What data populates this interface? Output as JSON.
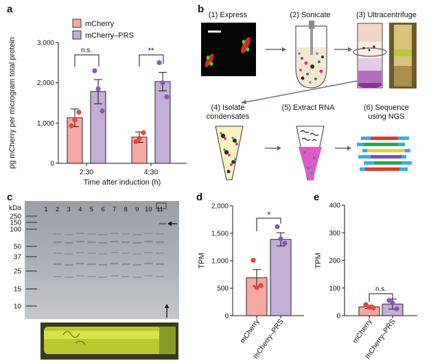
{
  "panels": {
    "a": "a",
    "b": "b",
    "c": "c",
    "d": "d",
    "e": "e"
  },
  "colors": {
    "mcherry_fill": "#f6a9a3",
    "mcherry_dot": "#e8463a",
    "prs_fill": "#c2aed6",
    "prs_dot": "#8a55b5",
    "bar_edge": "#111111"
  },
  "chart_data": [
    {
      "id": "a",
      "type": "bar",
      "ylabel": "pg mCherry per microgram total protein",
      "xlabel": "Time after induction (h)",
      "categories": [
        "2:30",
        "4:30"
      ],
      "yticks": [
        "0",
        "1,000",
        "2,000",
        "3,000"
      ],
      "ylim": [
        0,
        3000
      ],
      "legend": [
        "mCherry",
        "mCherry–PRS"
      ],
      "series": [
        {
          "name": "mCherry",
          "values": [
            1130,
            650
          ],
          "err": [
            220,
            130
          ],
          "points": [
            [
              930,
              1270,
              1080
            ],
            [
              540,
              760,
              620
            ]
          ]
        },
        {
          "name": "mCherry–PRS",
          "values": [
            1780,
            2030
          ],
          "err": [
            300,
            230
          ],
          "points": [
            [
              2300,
              1300,
              1850
            ],
            [
              2500,
              1650,
              2000
            ]
          ]
        }
      ],
      "significance": [
        "n.s.",
        "**"
      ]
    },
    {
      "id": "d",
      "type": "bar",
      "ylabel": "TPM",
      "categories": [
        "mCherry",
        "mCherry–PRS"
      ],
      "yticks": [
        "0",
        "500",
        "1,000",
        "1,500",
        "2,000"
      ],
      "ylim": [
        0,
        2000
      ],
      "values": [
        690,
        1390
      ],
      "err": [
        150,
        120
      ],
      "points": [
        [
          1010,
          550,
          510
        ],
        [
          1620,
          1320,
          1400
        ]
      ],
      "significance": "*"
    },
    {
      "id": "e",
      "type": "bar",
      "ylabel": "TPM",
      "categories": [
        "mCherry",
        "mCherry–PRS"
      ],
      "yticks": [
        "0",
        "100",
        "200",
        "300",
        "400"
      ],
      "ylim": [
        0,
        400
      ],
      "values": [
        32,
        42
      ],
      "err": [
        6,
        18
      ],
      "points": [
        [
          40,
          28,
          30
        ],
        [
          55,
          25,
          46
        ]
      ],
      "significance": "n.s."
    }
  ],
  "workflow": {
    "steps": [
      "(1) Express",
      "(2) Sonicate",
      "(3) Ultracentrifuge",
      "(4) Isolate",
      "condensates",
      "(5) Extract RNA",
      "(6) Sequence",
      "using NGS"
    ]
  },
  "gel": {
    "unit": "kDa",
    "markers": [
      "250",
      "150",
      "100",
      "50",
      "37",
      "25",
      "15",
      "10"
    ],
    "lanes": [
      "1",
      "2",
      "3",
      "4",
      "5",
      "6",
      "7",
      "8",
      "9",
      "10",
      "11"
    ]
  }
}
